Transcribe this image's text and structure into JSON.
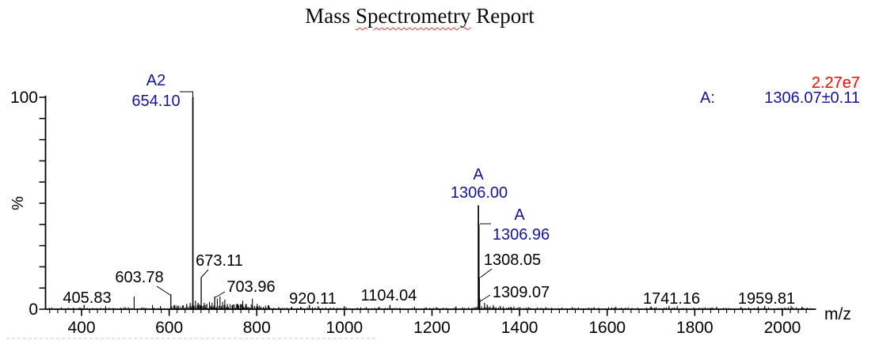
{
  "title": {
    "text": "Mass Spectrometry Report",
    "part1": "Mass ",
    "misspelled": "Spectrometry",
    "part2": " Report"
  },
  "header": {
    "total_intensity": "2.27e7",
    "series_a_label": "A:",
    "series_a_mass": "1306.07±0.11"
  },
  "colors": {
    "annotation_blue": "#14149b",
    "annotation_black": "#000000",
    "intensity_red": "#fe0000",
    "axis": "#000000",
    "dashed_line": "#c8c8c8"
  },
  "axes": {
    "x_label": "m/z",
    "y_label": "%",
    "y_max_label": "100",
    "y_min_label": "0",
    "x_ticks": [
      400,
      600,
      800,
      1000,
      1200,
      1400,
      1600,
      1800,
      2000
    ],
    "x_range": [
      318,
      2076
    ],
    "y_ticks": [
      0,
      100
    ],
    "y_range": [
      0,
      100
    ]
  },
  "chart_data": {
    "type": "bar",
    "subtype": "mass-spectrum-stick-plot",
    "title": "Mass Spectrometry Report",
    "xlabel": "m/z",
    "ylabel": "%",
    "xlim": [
      318,
      2076
    ],
    "ylim": [
      0,
      100
    ],
    "grid": false,
    "legend": "none",
    "base_peak": {
      "label": "A2",
      "mz": 654.1,
      "intensity": 100
    },
    "reported_mass": {
      "series": "A",
      "value": "1306.07±0.11",
      "total_intensity": "2.27e7"
    },
    "peaks": [
      {
        "mz": 405.83,
        "intensity": 2,
        "label": "405.83",
        "series": null,
        "label_color": "black"
      },
      {
        "mz": 603.78,
        "intensity": 7,
        "label": "603.78",
        "series": null,
        "label_color": "black"
      },
      {
        "mz": 654.1,
        "intensity": 100,
        "label": "654.10",
        "series": "A2",
        "label_color": "blue"
      },
      {
        "mz": 673.11,
        "intensity": 15,
        "label": "673.11",
        "series": null,
        "label_color": "black"
      },
      {
        "mz": 703.96,
        "intensity": 6,
        "label": "703.96",
        "series": null,
        "label_color": "black"
      },
      {
        "mz": 920.11,
        "intensity": 2,
        "label": "920.11",
        "series": null,
        "label_color": "black"
      },
      {
        "mz": 1104.04,
        "intensity": 2,
        "label": "1104.04",
        "series": null,
        "label_color": "black"
      },
      {
        "mz": 1306.0,
        "intensity": 49,
        "label": "1306.00",
        "series": "A",
        "label_color": "blue"
      },
      {
        "mz": 1306.96,
        "intensity": 40,
        "label": "1306.96",
        "series": "A",
        "label_color": "blue"
      },
      {
        "mz": 1308.05,
        "intensity": 15,
        "label": "1308.05",
        "series": null,
        "label_color": "black"
      },
      {
        "mz": 1309.07,
        "intensity": 5,
        "label": "1309.07",
        "series": null,
        "label_color": "black"
      },
      {
        "mz": 1741.16,
        "intensity": 1.5,
        "label": "1741.16",
        "series": null,
        "label_color": "black"
      },
      {
        "mz": 1959.81,
        "intensity": 1.5,
        "label": "1959.81",
        "series": null,
        "label_color": "black"
      }
    ],
    "noise_peaks": [
      [
        455,
        1.5
      ],
      [
        520,
        6
      ],
      [
        562,
        2
      ],
      [
        580,
        1.5
      ],
      [
        612,
        2
      ],
      [
        640,
        2.5
      ],
      [
        648,
        3
      ],
      [
        660,
        4
      ],
      [
        666,
        3
      ],
      [
        680,
        3
      ],
      [
        686,
        2.5
      ],
      [
        692,
        3.5
      ],
      [
        698,
        3
      ],
      [
        710,
        5
      ],
      [
        716,
        6
      ],
      [
        722,
        3.5
      ],
      [
        727,
        4.5
      ],
      [
        733,
        2.5
      ],
      [
        745,
        2
      ],
      [
        755,
        2.5
      ],
      [
        768,
        4
      ],
      [
        776,
        2.5
      ],
      [
        790,
        5
      ],
      [
        801,
        2.5
      ],
      [
        850,
        1
      ],
      [
        880,
        1.2
      ],
      [
        900,
        1
      ],
      [
        940,
        1.5
      ],
      [
        1000,
        1.5
      ],
      [
        1050,
        1
      ],
      [
        1080,
        1.2
      ],
      [
        1160,
        1.2
      ],
      [
        1210,
        1
      ],
      [
        1255,
        1.3
      ],
      [
        1320,
        3
      ],
      [
        1326,
        2.2
      ],
      [
        1340,
        2
      ],
      [
        1356,
        1.6
      ],
      [
        1380,
        1.2
      ],
      [
        1420,
        1
      ],
      [
        1460,
        1
      ],
      [
        1520,
        1
      ],
      [
        1570,
        1
      ],
      [
        1620,
        1.2
      ],
      [
        1700,
        1.3
      ],
      [
        1760,
        1.5
      ],
      [
        1850,
        1.2
      ],
      [
        1905,
        1
      ],
      [
        1945,
        1.3
      ],
      [
        2020,
        1.6
      ],
      [
        2045,
        1.2
      ]
    ]
  }
}
